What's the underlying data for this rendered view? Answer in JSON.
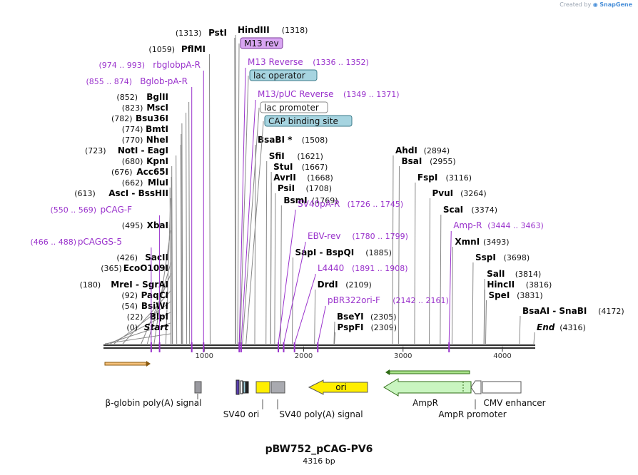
{
  "app": {
    "watermark_prefix": "Created by",
    "watermark_brand": "SnapGene"
  },
  "plasmid": {
    "name": "pBW752_pCAG-PV6",
    "size_label": "4316 bp",
    "length": 4316
  },
  "colors": {
    "enzyme": "#000000",
    "primer": "#9a33cc",
    "line_gray": "#888888",
    "backbone": "#333333"
  },
  "enzymes": [
    {
      "name": "PstI",
      "pos_label": "(1313)",
      "pos": 1313,
      "label_side": "left"
    },
    {
      "name": "HindIII",
      "pos_label": "(1318)",
      "pos": 1318,
      "label_side": "right"
    },
    {
      "name": "PflMI",
      "pos_label": "(1059)",
      "pos": 1059,
      "label_side": "left"
    },
    {
      "name": "BglII",
      "pos_label": "(852)",
      "pos": 852,
      "label_side": "left"
    },
    {
      "name": "MscI",
      "pos_label": "(823)",
      "pos": 823,
      "label_side": "left"
    },
    {
      "name": "Bsu36I",
      "pos_label": "(782)",
      "pos": 782,
      "label_side": "left"
    },
    {
      "name": "BmtI",
      "pos_label": "(774)",
      "pos": 774,
      "label_side": "left"
    },
    {
      "name": "NheI",
      "pos_label": "(770)",
      "pos": 770,
      "label_side": "left"
    },
    {
      "name": "NotI - EagI",
      "pos_label": "(723)",
      "pos": 723,
      "label_side": "left"
    },
    {
      "name": "KpnI",
      "pos_label": "(680)",
      "pos": 680,
      "label_side": "left"
    },
    {
      "name": "Acc65I",
      "pos_label": "(676)",
      "pos": 676,
      "label_side": "left"
    },
    {
      "name": "MluI",
      "pos_label": "(662)",
      "pos": 662,
      "label_side": "left"
    },
    {
      "name": "AscI - BssHII",
      "pos_label": "(613)",
      "pos": 613,
      "label_side": "left"
    },
    {
      "name": "XbaI",
      "pos_label": "(495)",
      "pos": 495,
      "label_side": "left"
    },
    {
      "name": "SacII",
      "pos_label": "(426)",
      "pos": 426,
      "label_side": "left"
    },
    {
      "name": "EcoO109I",
      "pos_label": "(365)",
      "pos": 365,
      "label_side": "left"
    },
    {
      "name": "MreI - SgrAI",
      "pos_label": "(180)",
      "pos": 180,
      "label_side": "left"
    },
    {
      "name": "PaqCI",
      "pos_label": "(92)",
      "pos": 92,
      "label_side": "left"
    },
    {
      "name": "BsiWI",
      "pos_label": "(54)",
      "pos": 54,
      "label_side": "left"
    },
    {
      "name": "BlpI",
      "pos_label": "(22)",
      "pos": 22,
      "label_side": "left"
    },
    {
      "name": "Start",
      "pos_label": "(0)",
      "pos": 0,
      "label_side": "left",
      "italic": true
    },
    {
      "name": "BsaBI *",
      "pos_label": "(1508)",
      "pos": 1508,
      "label_side": "right"
    },
    {
      "name": "SfiI",
      "pos_label": "(1621)",
      "pos": 1621,
      "label_side": "right"
    },
    {
      "name": "StuI",
      "pos_label": "(1667)",
      "pos": 1667,
      "label_side": "right"
    },
    {
      "name": "AvrII",
      "pos_label": "(1668)",
      "pos": 1668,
      "label_side": "right"
    },
    {
      "name": "PsiI",
      "pos_label": "(1708)",
      "pos": 1708,
      "label_side": "right"
    },
    {
      "name": "BsmI",
      "pos_label": "(1769)",
      "pos": 1769,
      "label_side": "right"
    },
    {
      "name": "SapI - BspQI",
      "pos_label": "(1885)",
      "pos": 1885,
      "label_side": "right"
    },
    {
      "name": "DrdI",
      "pos_label": "(2109)",
      "pos": 2109,
      "label_side": "right"
    },
    {
      "name": "BseYI",
      "pos_label": "(2305)",
      "pos": 2305,
      "label_side": "right"
    },
    {
      "name": "PspFI",
      "pos_label": "(2309)",
      "pos": 2309,
      "label_side": "right"
    },
    {
      "name": "AhdI",
      "pos_label": "(2894)",
      "pos": 2894,
      "label_side": "right"
    },
    {
      "name": "BsaI",
      "pos_label": "(2955)",
      "pos": 2955,
      "label_side": "right"
    },
    {
      "name": "FspI",
      "pos_label": "(3116)",
      "pos": 3116,
      "label_side": "right"
    },
    {
      "name": "PvuI",
      "pos_label": "(3264)",
      "pos": 3264,
      "label_side": "right"
    },
    {
      "name": "ScaI",
      "pos_label": "(3374)",
      "pos": 3374,
      "label_side": "right"
    },
    {
      "name": "XmnI",
      "pos_label": "(3493)",
      "pos": 3493,
      "label_side": "right"
    },
    {
      "name": "SspI",
      "pos_label": "(3698)",
      "pos": 3698,
      "label_side": "right"
    },
    {
      "name": "SalI",
      "pos_label": "(3814)",
      "pos": 3814,
      "label_side": "right"
    },
    {
      "name": "HincII",
      "pos_label": "(3816)",
      "pos": 3816,
      "label_side": "right"
    },
    {
      "name": "SpeI",
      "pos_label": "(3831)",
      "pos": 3831,
      "label_side": "right"
    },
    {
      "name": "BsaAI - SnaBI",
      "pos_label": "(4172)",
      "pos": 4172,
      "label_side": "right"
    },
    {
      "name": "End",
      "pos_label": "(4316)",
      "pos": 4316,
      "label_side": "right",
      "italic": true
    }
  ],
  "primers": [
    {
      "name": "rbglobpA-R",
      "range": "(974 .. 993)",
      "pos": 993,
      "label_side": "left"
    },
    {
      "name": "Bglob-pA-R",
      "range": "(855 .. 874)",
      "pos": 874,
      "label_side": "left"
    },
    {
      "name": "pCAG-F",
      "range": "(550 .. 569)",
      "pos": 550,
      "label_side": "left"
    },
    {
      "name": "pCAGGS-5",
      "range": "(466 .. 488)",
      "pos": 466,
      "label_side": "left"
    },
    {
      "name": "M13 Reverse",
      "range": "(1336 .. 1352)",
      "pos": 1352,
      "label_side": "right"
    },
    {
      "name": "M13/pUC Reverse",
      "range": "(1349 .. 1371)",
      "pos": 1371,
      "label_side": "right"
    },
    {
      "name": "SV40pA-R",
      "range": "(1726 .. 1745)",
      "pos": 1745,
      "label_side": "right"
    },
    {
      "name": "EBV-rev",
      "range": "(1780 .. 1799)",
      "pos": 1799,
      "label_side": "right"
    },
    {
      "name": "L4440",
      "range": "(1891 .. 1908)",
      "pos": 1908,
      "label_side": "right"
    },
    {
      "name": "pBR322ori-F",
      "range": "(2142 .. 2161)",
      "pos": 2142,
      "label_side": "right"
    },
    {
      "name": "Amp-R",
      "range": "(3444 .. 3463)",
      "pos": 3463,
      "label_side": "right"
    }
  ],
  "boxed_features": [
    {
      "name": "M13 rev",
      "pos": 1336,
      "style": "purple"
    },
    {
      "name": "lac operator",
      "pos": 1360,
      "style": "teal"
    },
    {
      "name": "lac promoter",
      "pos": 1384,
      "style": "white"
    },
    {
      "name": "CAP binding site",
      "pos": 1420,
      "style": "teal"
    }
  ],
  "ticks": [
    {
      "label": "1000",
      "pos": 1000
    },
    {
      "label": "2000",
      "pos": 2000
    },
    {
      "label": "3000",
      "pos": 3000
    },
    {
      "label": "4000",
      "pos": 4000
    }
  ],
  "features": [
    {
      "name": "β-globin poly(A) signal",
      "label_row": 1
    },
    {
      "name": "SV40 ori",
      "label_row": 2
    },
    {
      "name": "SV40 poly(A) signal",
      "label_row": 2
    },
    {
      "name": "ori",
      "label_row": 0
    },
    {
      "name": "AmpR",
      "label_row": 1
    },
    {
      "name": "AmpR promoter",
      "label_row": 2
    },
    {
      "name": "CMV enhancer",
      "label_row": 1
    }
  ]
}
